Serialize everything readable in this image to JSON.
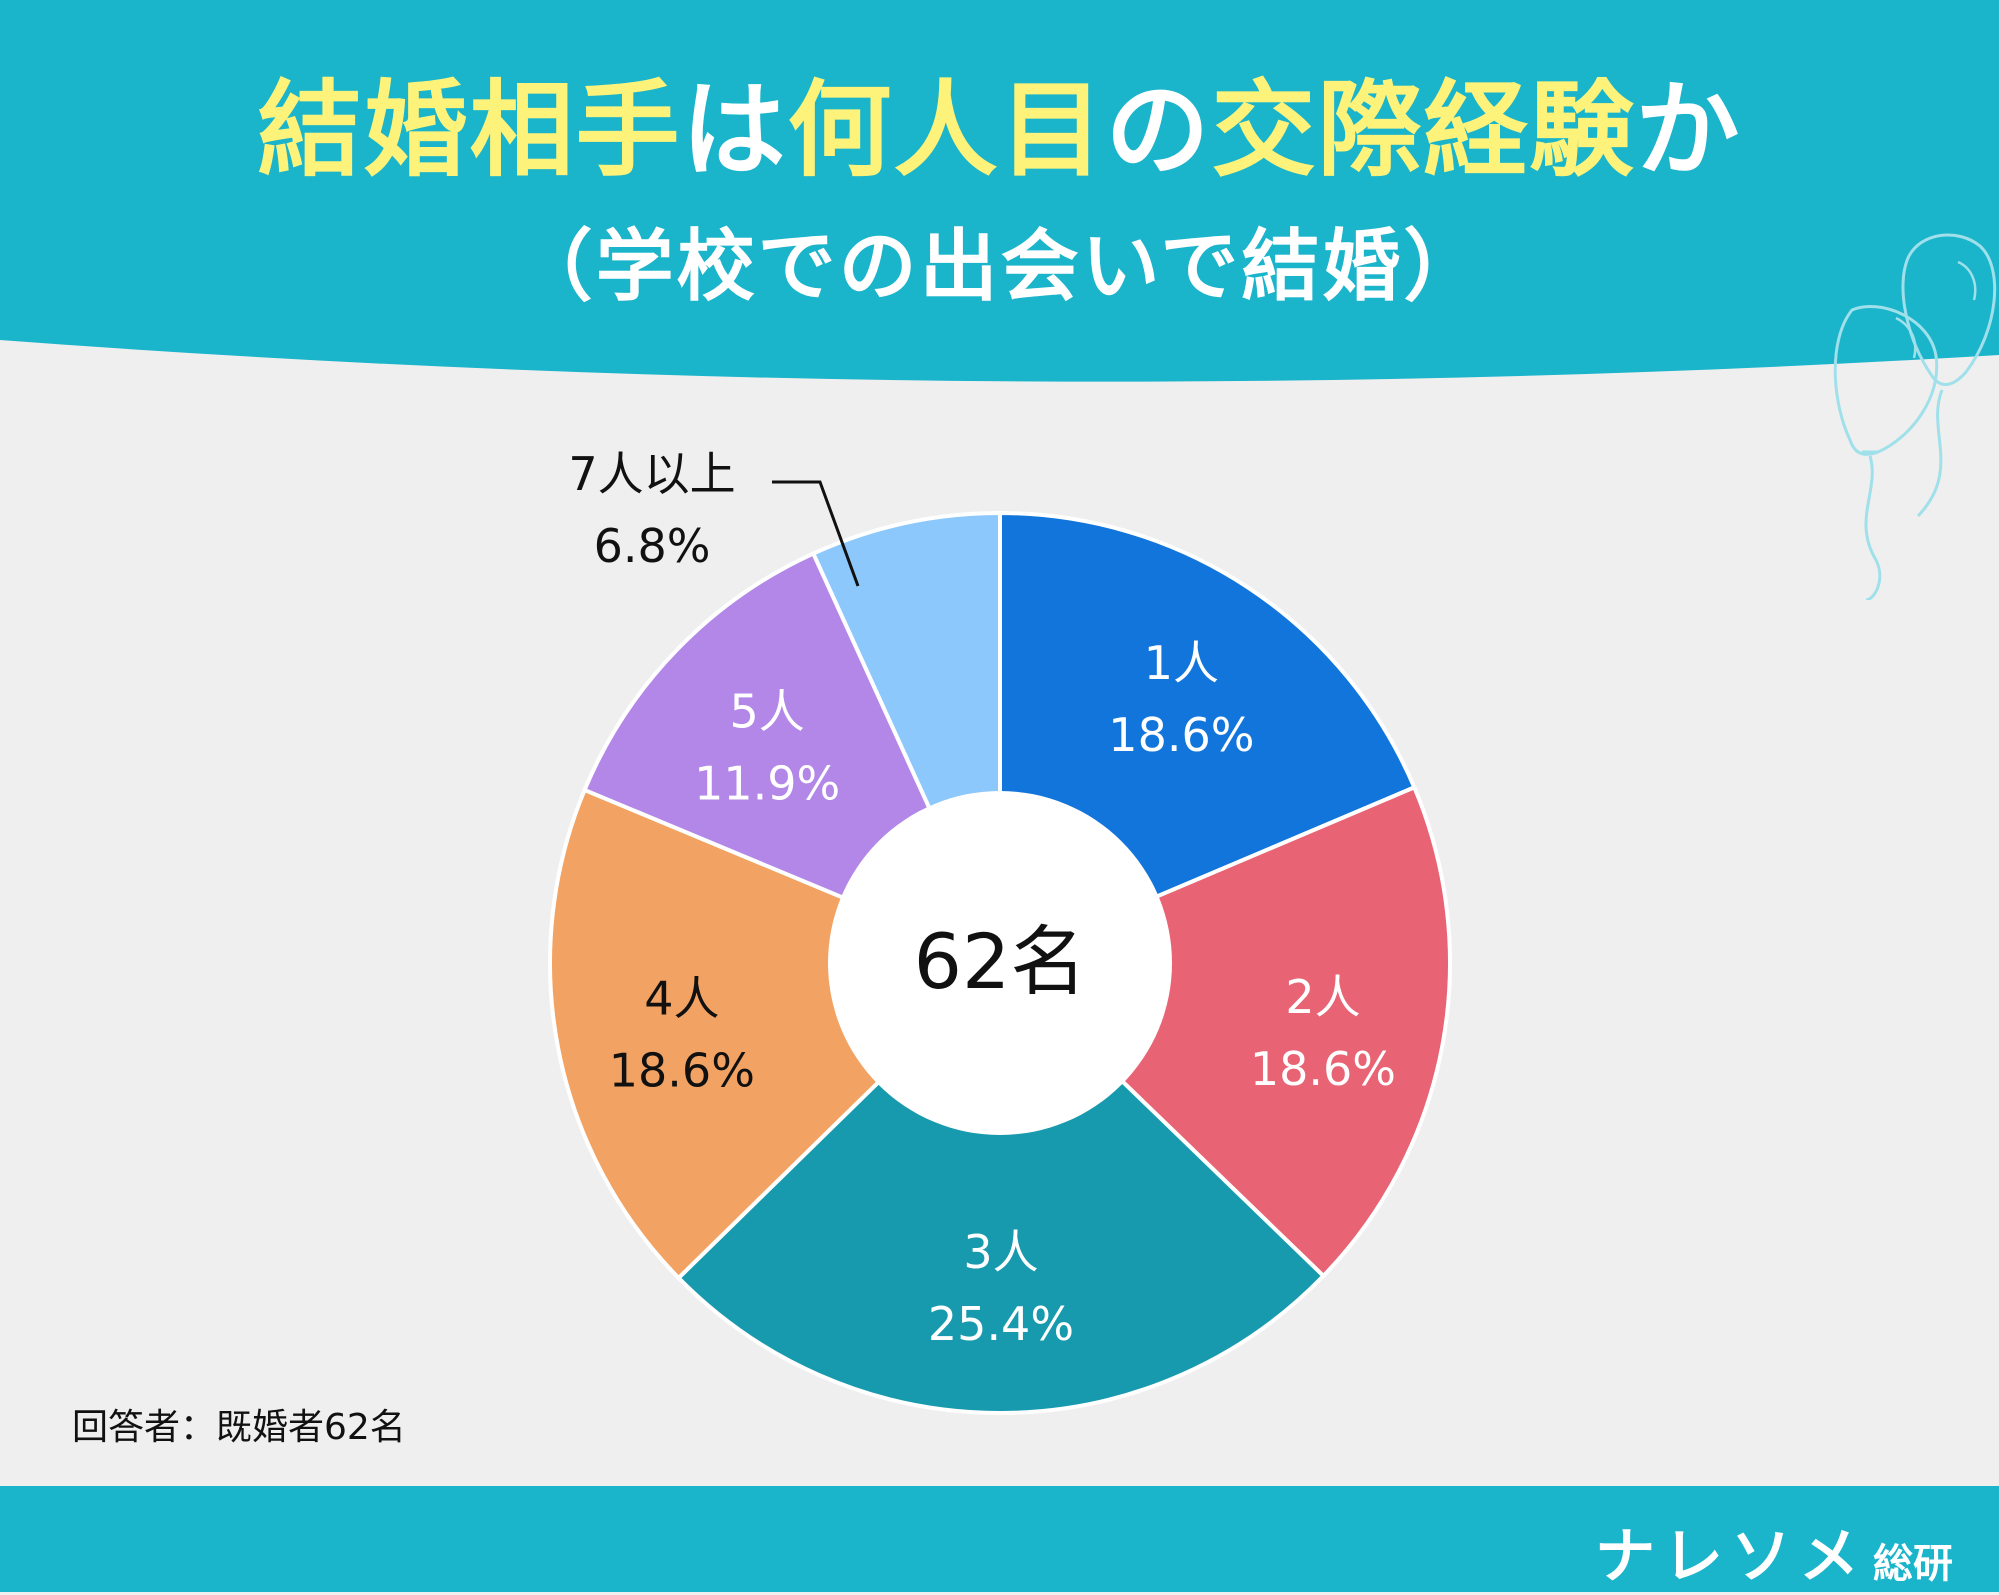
{
  "title": {
    "line1": [
      {
        "text": "結婚相手",
        "highlight": true
      },
      {
        "text": "は",
        "highlight": false
      },
      {
        "text": "何人目",
        "highlight": true
      },
      {
        "text": "の",
        "highlight": false
      },
      {
        "text": "交際経験",
        "highlight": true
      },
      {
        "text": "か",
        "highlight": false
      }
    ],
    "line2": "（学校での出会いで結婚）"
  },
  "chart_data": {
    "type": "pie",
    "center_label": "62名",
    "categories": [
      "1人",
      "2人",
      "3人",
      "4人",
      "5人",
      "7人以上"
    ],
    "values": [
      18.6,
      18.6,
      25.4,
      18.6,
      11.9,
      6.8
    ],
    "value_labels": [
      "18.6%",
      "18.6%",
      "25.4%",
      "18.6%",
      "11.9%",
      "6.8%"
    ],
    "colors": [
      "#1275dc",
      "#e86373",
      "#189aae",
      "#f2a262",
      "#b287e8",
      "#8cc8fb"
    ],
    "label_colors": [
      "#ffffff",
      "#ffffff",
      "#ffffff",
      "#111111",
      "#ffffff",
      "#111111"
    ]
  },
  "footnote": "回答者：既婚者62名",
  "brand": {
    "name": "ナレソメ",
    "sub": "総研"
  },
  "colors": {
    "header_bg": "#1ab4cb",
    "page_bg": "#efefef",
    "title_highlight": "#fdf37a",
    "title_plain": "#ffffff"
  },
  "decorations": {
    "balloons_icon": "balloons-icon"
  }
}
